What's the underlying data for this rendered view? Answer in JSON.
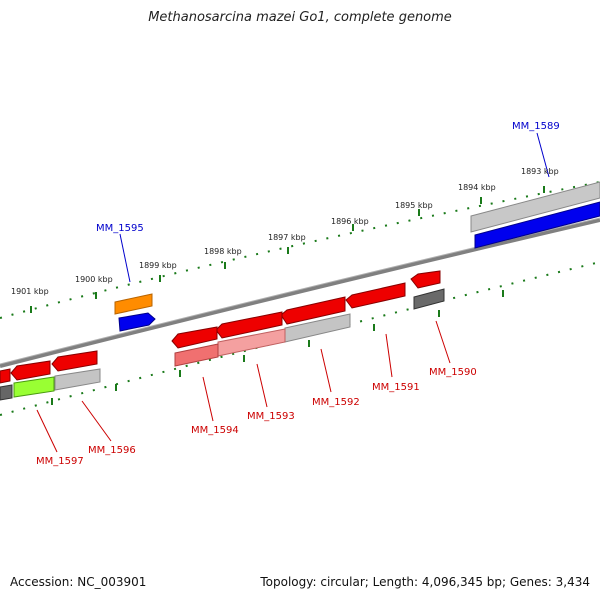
{
  "title": "Methanosarcina mazei Go1, complete genome",
  "footer": {
    "accession": "Accession: NC_003901",
    "summary": "Topology: circular; Length: 4,096,345 bp; Genes: 3,434"
  },
  "colors": {
    "forward_label": "#0000cc",
    "reverse_label": "#cc0000",
    "tick": "#1a7a1a",
    "backbone": "#808080"
  },
  "scale": {
    "unit": "kbp",
    "labels": [
      "1893 kbp",
      "1894 kbp",
      "1895 kbp",
      "1896 kbp",
      "1897 kbp",
      "1898 kbp",
      "1899 kbp",
      "1900 kbp",
      "1901 kbp"
    ]
  },
  "genes": {
    "forward": [
      {
        "name": "MM_1589",
        "color": "#0000ee"
      },
      {
        "name": "MM_1595",
        "color": "#0000ee"
      }
    ],
    "reverse": [
      {
        "name": "MM_1590"
      },
      {
        "name": "MM_1591"
      },
      {
        "name": "MM_1592"
      },
      {
        "name": "MM_1593"
      },
      {
        "name": "MM_1594"
      },
      {
        "name": "MM_1596"
      },
      {
        "name": "MM_1597"
      }
    ]
  }
}
